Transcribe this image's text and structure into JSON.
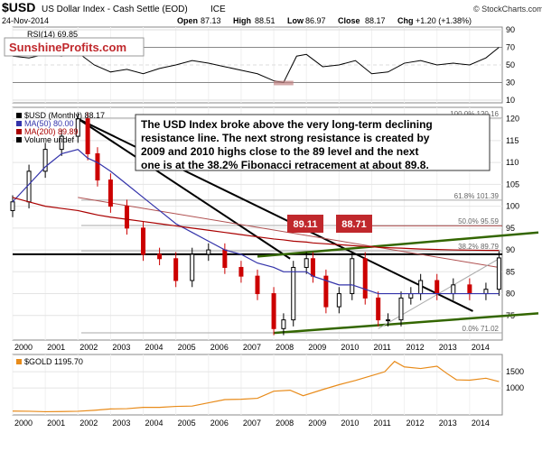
{
  "header": {
    "symbol": "$USD",
    "name": "US Dollar Index - Cash Settle (EOD)",
    "exchange": "ICE",
    "date": "24-Nov-2014",
    "open_label": "Open",
    "open": "87.13",
    "high_label": "High",
    "high": "88.51",
    "low_label": "Low",
    "low": "86.97",
    "close_label": "Close",
    "close": "88.17",
    "chg_label": "Chg",
    "chg": "+1.20 (+1.38%)",
    "credit": "© StockCharts.com"
  },
  "watermark": "SunshineProfits.com",
  "colors": {
    "price_up": "#000000",
    "price_down": "#cc0000",
    "ma50": "#3333aa",
    "ma200": "#aa0000",
    "gold": "#e88b1a",
    "support": "#336600",
    "level_box": "#c0282c",
    "fib": "#aaaaaa"
  },
  "chart_data": [
    {
      "type": "line",
      "panel": "rsi",
      "legend": [
        "RSI(14) 69.85"
      ],
      "y_ticks": [
        10,
        30,
        50,
        70,
        90
      ],
      "ylim": [
        10,
        90
      ],
      "x": [
        2000.0,
        2000.5,
        2001.0,
        2001.5,
        2002.0,
        2002.5,
        2003.0,
        2003.5,
        2004.0,
        2004.5,
        2005.0,
        2005.5,
        2006.0,
        2006.5,
        2007.0,
        2007.5,
        2008.0,
        2008.3,
        2008.7,
        2009.0,
        2009.5,
        2010.0,
        2010.5,
        2011.0,
        2011.5,
        2012.0,
        2012.5,
        2013.0,
        2013.5,
        2014.0,
        2014.5,
        2014.9
      ],
      "values": [
        60,
        58,
        62,
        60,
        64,
        50,
        42,
        45,
        40,
        46,
        50,
        55,
        52,
        48,
        44,
        40,
        32,
        30,
        60,
        62,
        48,
        50,
        55,
        40,
        42,
        52,
        55,
        50,
        52,
        50,
        58,
        70
      ]
    },
    {
      "type": "candlestick",
      "panel": "price",
      "legend": [
        "$USD (Monthly) 88.17",
        "MA(50) 80.00",
        "MA(200) 89.89",
        "Volume undef"
      ],
      "y_ticks": [
        75,
        80,
        85,
        90,
        95,
        100,
        105,
        110,
        115,
        120
      ],
      "ylim": [
        70,
        122
      ],
      "x_ticks": [
        "2000",
        "2001",
        "2002",
        "2003",
        "2004",
        "2005",
        "2006",
        "2007",
        "2008",
        "2009",
        "2010",
        "2011",
        "2012",
        "2013",
        "2014"
      ],
      "x": [
        2000.0,
        2000.5,
        2001.0,
        2001.5,
        2002.0,
        2002.3,
        2002.6,
        2003.0,
        2003.5,
        2004.0,
        2004.5,
        2005.0,
        2005.5,
        2006.0,
        2006.5,
        2007.0,
        2007.5,
        2008.0,
        2008.3,
        2008.6,
        2009.0,
        2009.2,
        2009.6,
        2010.0,
        2010.4,
        2010.8,
        2011.2,
        2011.5,
        2011.9,
        2012.2,
        2012.5,
        2013.0,
        2013.5,
        2014.0,
        2014.5,
        2014.9
      ],
      "close": [
        101,
        108,
        113,
        116,
        120,
        112,
        106,
        100,
        95,
        89,
        88,
        83,
        89,
        90,
        86,
        84,
        80,
        72,
        74,
        86,
        88,
        84,
        77,
        80,
        88,
        79,
        74,
        74,
        79,
        80,
        83,
        80,
        82,
        80,
        81,
        88.17
      ],
      "ma50": [
        101,
        105,
        109,
        112,
        113,
        111,
        110,
        108,
        105,
        102,
        99,
        96,
        94,
        92,
        90,
        89,
        87,
        86,
        85,
        85,
        85,
        84,
        83,
        82,
        82,
        81,
        80,
        80,
        80,
        80,
        80,
        80,
        80,
        80,
        80,
        80
      ],
      "ma200": [
        102,
        101,
        100,
        99.5,
        99,
        98.5,
        98,
        97.5,
        97,
        96.5,
        96,
        95.5,
        95,
        94.5,
        94,
        93.5,
        93,
        92.5,
        92.3,
        92,
        91.8,
        91.6,
        91.4,
        91.2,
        91,
        90.8,
        90.6,
        90.5,
        90.4,
        90.3,
        90.2,
        90.1,
        90,
        89.95,
        89.9,
        89.89
      ],
      "fib_levels": [
        {
          "label": "100.0% 120.16",
          "value": 120.16
        },
        {
          "label": "61.8% 101.39",
          "value": 101.39
        },
        {
          "label": "50.0% 95.59",
          "value": 95.59
        },
        {
          "label": "38.2% 89.79",
          "value": 89.79
        },
        {
          "label": "0.0% 71.02",
          "value": 71.02
        }
      ],
      "resistance_levels": [
        {
          "label": "89.11",
          "value": 89.11,
          "year": 2009
        },
        {
          "label": "88.71",
          "value": 88.71,
          "year": 2010
        }
      ],
      "annotation": [
        "The USD Index broke above the very long-term declining",
        "resistance line. The next strong resistance is created by",
        "2009 and 2010 highs close to the 89 level and the next",
        "one is at the 38.2% Fibonacci retracement at about 89.8."
      ]
    },
    {
      "type": "line",
      "panel": "gold",
      "legend": [
        "$GOLD 1195.70"
      ],
      "y_ticks": [
        1000,
        1500
      ],
      "ylim": [
        250,
        1950
      ],
      "x_ticks": [
        "2000",
        "2001",
        "2002",
        "2003",
        "2004",
        "2005",
        "2006",
        "2007",
        "2008",
        "2009",
        "2010",
        "2011",
        "2012",
        "2013",
        "2014"
      ],
      "x": [
        2000.0,
        2000.5,
        2001.0,
        2001.5,
        2002.0,
        2002.5,
        2003.0,
        2003.5,
        2004.0,
        2004.5,
        2005.0,
        2005.5,
        2006.0,
        2006.5,
        2007.0,
        2007.5,
        2008.0,
        2008.5,
        2008.9,
        2009.5,
        2010.0,
        2010.5,
        2011.0,
        2011.4,
        2011.7,
        2012.0,
        2012.5,
        2013.0,
        2013.3,
        2013.6,
        2014.0,
        2014.5,
        2014.9
      ],
      "values": [
        285,
        280,
        265,
        270,
        280,
        310,
        350,
        360,
        400,
        400,
        430,
        440,
        540,
        640,
        650,
        680,
        900,
        930,
        760,
        950,
        1100,
        1230,
        1380,
        1500,
        1820,
        1650,
        1600,
        1670,
        1450,
        1250,
        1240,
        1300,
        1195.7
      ]
    }
  ]
}
